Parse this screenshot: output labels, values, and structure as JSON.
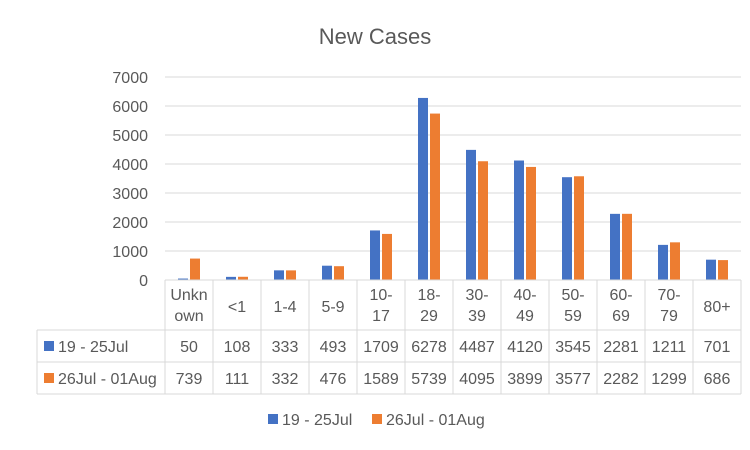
{
  "chart_data": {
    "type": "bar",
    "title": "New Cases",
    "categories": [
      "Unkn own",
      "<1",
      "1-4",
      "5-9",
      "10- 17",
      "18- 29",
      "30- 39",
      "40- 49",
      "50- 59",
      "60- 69",
      "70- 79",
      "80+"
    ],
    "series": [
      {
        "name": "19 - 25Jul",
        "color": "#4472C4",
        "values": [
          50,
          108,
          333,
          493,
          1709,
          6278,
          4487,
          4120,
          3545,
          2281,
          1211,
          701
        ]
      },
      {
        "name": "26Jul - 01Aug",
        "color": "#ED7D31",
        "values": [
          739,
          111,
          332,
          476,
          1589,
          5739,
          4095,
          3899,
          3577,
          2282,
          1299,
          686
        ]
      }
    ],
    "ylim": [
      0,
      7000
    ],
    "yticks": [
      0,
      1000,
      2000,
      3000,
      4000,
      5000,
      6000,
      7000
    ],
    "grid": true,
    "legend": "bottom",
    "data_table": true
  }
}
